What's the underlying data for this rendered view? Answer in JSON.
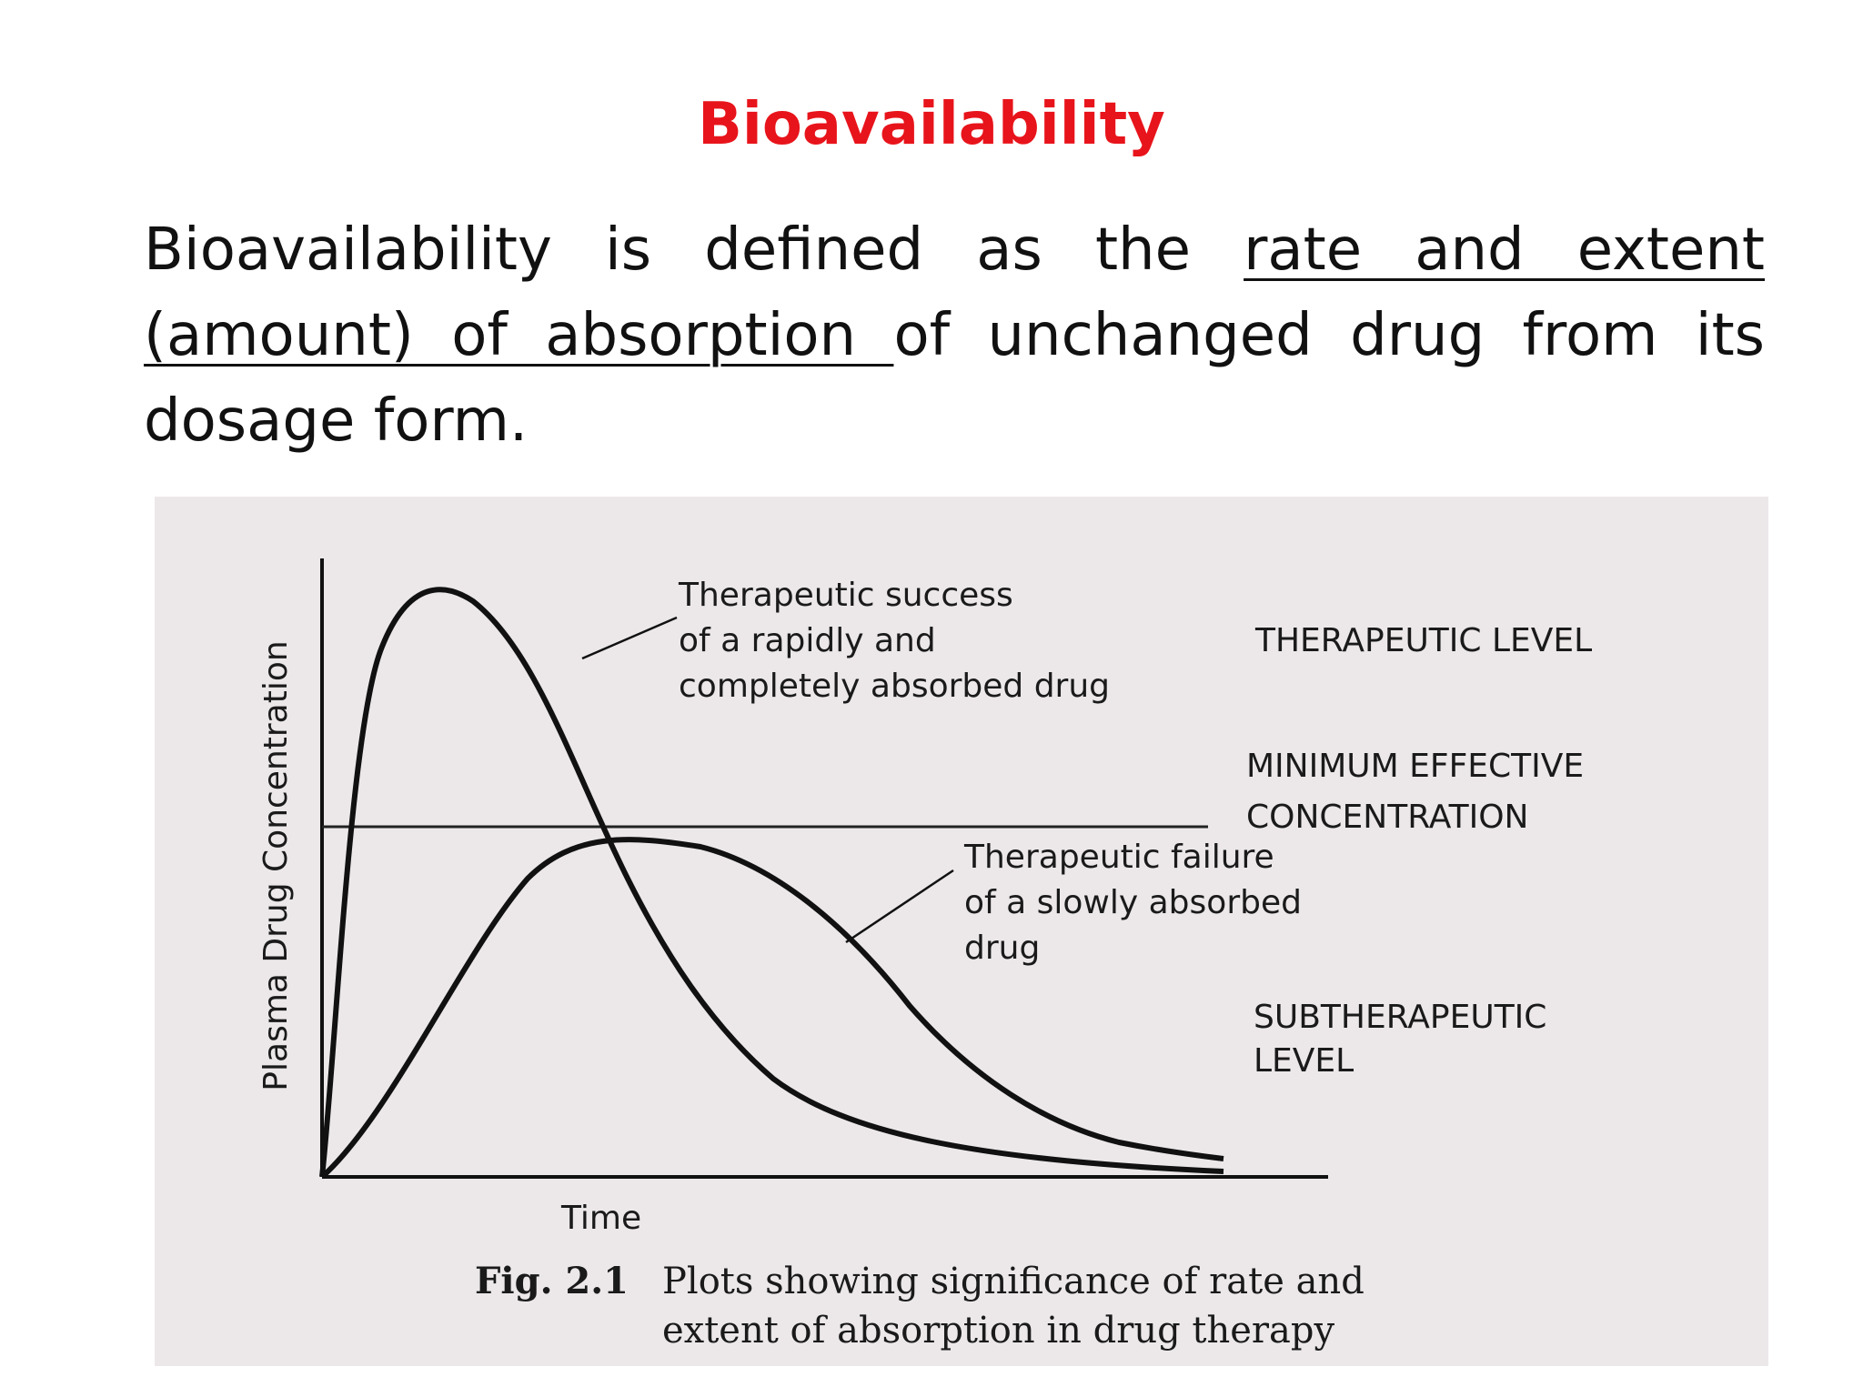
{
  "slide": {
    "title": "Bioavailability",
    "definition": {
      "before": "Bioavailability is defined as the ",
      "underlined": "rate and extent (amount) of absorption ",
      "after": "of unchanged drug from its dosage form."
    }
  },
  "figure": {
    "y_axis_label": "Plasma Drug Concentration",
    "x_axis_label": "Time",
    "annotation_success": [
      "Therapeutic success",
      "of a rapidly and",
      "completely absorbed drug"
    ],
    "annotation_failure": [
      "Therapeutic failure",
      "of a slowly absorbed",
      "drug"
    ],
    "region_therapeutic": "THERAPEUTIC LEVEL",
    "region_mec": [
      "MINIMUM EFFECTIVE",
      "CONCENTRATION"
    ],
    "region_subtherapeutic": [
      "SUBTHERAPEUTIC",
      "LEVEL"
    ],
    "caption_label": "Fig. 2.1",
    "caption_lines": [
      "Plots showing significance of rate and",
      "extent of absorption in drug therapy"
    ]
  },
  "colors": {
    "title": "#e8141b",
    "text": "#111111",
    "figure_background": "#ece8ea"
  }
}
